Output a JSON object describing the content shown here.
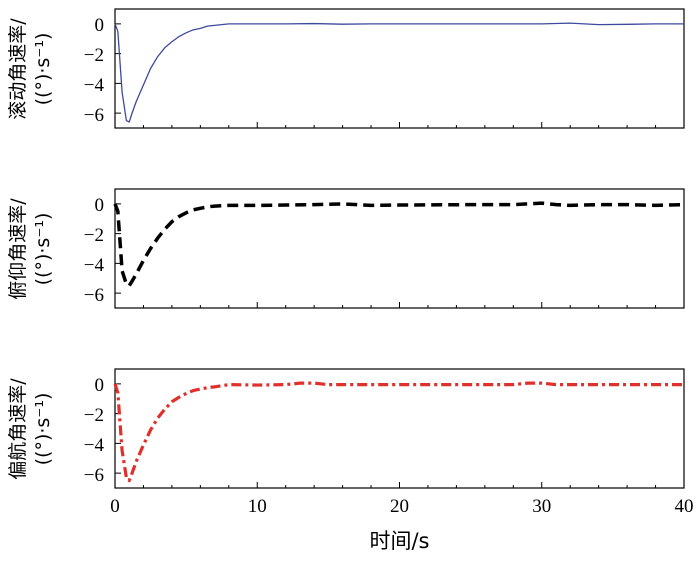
{
  "chart_data": [
    {
      "type": "line",
      "ylabel_line1": "滚动角速率/",
      "ylabel_line2": "((°)·s⁻¹)",
      "xlim": [
        0,
        40
      ],
      "ylim": [
        -7,
        1
      ],
      "yticks": [
        0,
        -2,
        -4,
        -6
      ],
      "ytick_labels": [
        "0",
        "−2",
        "−4",
        "−6"
      ],
      "xticks": [
        0,
        10,
        20,
        30,
        40
      ],
      "series": [
        {
          "name": "roll-rate",
          "color": "#3d4a9e",
          "style": "solid",
          "x": [
            0,
            0.2,
            0.5,
            0.8,
            1.0,
            1.2,
            1.5,
            2.0,
            2.5,
            3.0,
            3.5,
            4.0,
            4.5,
            5.0,
            5.5,
            6.0,
            6.5,
            7.0,
            7.5,
            8.0,
            10,
            12,
            14,
            16,
            18,
            20,
            25,
            30,
            32,
            34,
            36,
            38,
            40
          ],
          "y": [
            0,
            -0.5,
            -4.6,
            -6.5,
            -6.6,
            -6.0,
            -5.2,
            -4.1,
            -3.0,
            -2.2,
            -1.6,
            -1.2,
            -0.85,
            -0.6,
            -0.4,
            -0.3,
            -0.15,
            -0.1,
            -0.05,
            0,
            0,
            0,
            0.02,
            -0.02,
            0,
            0,
            0,
            0,
            0.05,
            -0.05,
            -0.03,
            0,
            0
          ]
        }
      ]
    },
    {
      "type": "line",
      "ylabel_line1": "俯仰角速率/",
      "ylabel_line2": "((°)·s⁻¹)",
      "xlim": [
        0,
        40
      ],
      "ylim": [
        -7,
        1
      ],
      "yticks": [
        0,
        -2,
        -4,
        -6
      ],
      "ytick_labels": [
        "0",
        "−2",
        "−4",
        "−6"
      ],
      "xticks": [
        0,
        10,
        20,
        30,
        40
      ],
      "series": [
        {
          "name": "pitch-rate",
          "color": "#000000",
          "style": "dashed",
          "x": [
            0,
            0.2,
            0.5,
            0.8,
            1.0,
            1.2,
            1.5,
            2.0,
            2.5,
            3.0,
            3.5,
            4.0,
            4.5,
            5.0,
            5.5,
            6.0,
            6.5,
            7.0,
            8.0,
            10,
            12,
            14,
            16,
            17,
            18,
            20,
            25,
            28,
            30,
            31,
            32,
            34,
            36,
            38,
            40
          ],
          "y": [
            0,
            -0.5,
            -4.5,
            -5.4,
            -5.5,
            -5.2,
            -4.7,
            -3.8,
            -3.0,
            -2.3,
            -1.7,
            -1.2,
            -0.85,
            -0.6,
            -0.4,
            -0.3,
            -0.2,
            -0.15,
            -0.1,
            -0.1,
            -0.08,
            -0.05,
            0,
            -0.05,
            -0.1,
            -0.08,
            -0.05,
            -0.05,
            0.05,
            -0.05,
            -0.1,
            -0.05,
            -0.05,
            -0.1,
            -0.05
          ]
        }
      ]
    },
    {
      "type": "line",
      "ylabel_line1": "偏航角速率/",
      "ylabel_line2": "((°)·s⁻¹)",
      "xlim": [
        0,
        40
      ],
      "ylim": [
        -7,
        1
      ],
      "yticks": [
        0,
        -2,
        -4,
        -6
      ],
      "ytick_labels": [
        "0",
        "−2",
        "−4",
        "−6"
      ],
      "xticks": [
        0,
        10,
        20,
        30,
        40
      ],
      "xtick_labels": [
        "0",
        "10",
        "20",
        "30",
        "40"
      ],
      "xlabel": "时间/s",
      "series": [
        {
          "name": "yaw-rate",
          "color": "#e0302b",
          "style": "dash-dot",
          "x": [
            0,
            0.2,
            0.5,
            0.8,
            1.0,
            1.2,
            1.5,
            2.0,
            2.5,
            3.0,
            3.5,
            4.0,
            4.5,
            5.0,
            5.5,
            6.0,
            6.5,
            7.0,
            8.0,
            10,
            12,
            13,
            14,
            15,
            16,
            18,
            20,
            25,
            28,
            29,
            30,
            31,
            32,
            36,
            40
          ],
          "y": [
            0,
            -0.6,
            -4.5,
            -6.3,
            -6.5,
            -6.0,
            -5.2,
            -4.1,
            -3.1,
            -2.3,
            -1.7,
            -1.2,
            -0.9,
            -0.65,
            -0.45,
            -0.35,
            -0.25,
            -0.2,
            -0.05,
            -0.08,
            -0.05,
            0.05,
            0.05,
            -0.05,
            -0.05,
            -0.05,
            -0.05,
            -0.05,
            -0.05,
            0.05,
            0.05,
            -0.05,
            -0.05,
            -0.05,
            -0.05
          ]
        }
      ]
    }
  ]
}
